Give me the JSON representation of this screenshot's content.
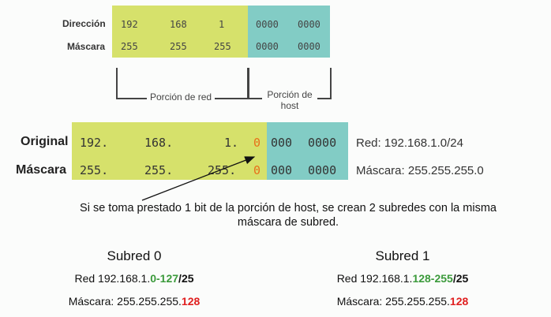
{
  "top_table": {
    "row1_label": "Dirección",
    "row2_label": "Máscara",
    "row1_net": [
      "192",
      "168",
      "1"
    ],
    "row1_host": [
      "0000",
      "0000"
    ],
    "row2_net": [
      "255",
      "255",
      "255"
    ],
    "row2_host": [
      "0000",
      "0000"
    ],
    "net_portion_label": "Porción de red",
    "host_portion_label_1": "Porción de",
    "host_portion_label_2": "host"
  },
  "mid_table": {
    "row1_label": "Original",
    "row2_label": "Máscara",
    "row1_net": [
      "192.",
      "168.",
      "1."
    ],
    "row1_bit": "0",
    "row1_host": [
      "000",
      "0000"
    ],
    "row2_net": [
      "255.",
      "255.",
      "255."
    ],
    "row2_bit": "0",
    "row2_host": [
      "000",
      "0000"
    ],
    "row1_right": "Red: 192.168.1.0/24",
    "row2_right": "Máscara: 255.255.255.0"
  },
  "note": {
    "line1": "Si se toma prestado 1 bit de la porción de host, se crean 2 subredes con la misma",
    "line2": "máscara de subred."
  },
  "subnet0": {
    "title": "Subred 0",
    "red_prefix": "Red 192.168.1.",
    "red_range": "0-127",
    "red_slash": "/",
    "red_cidr": "25",
    "mask_prefix": "Máscara: 255.255.255.",
    "mask_last": "128"
  },
  "subnet1": {
    "title": "Subred 1",
    "red_prefix": "Red 192.168.1.",
    "red_range": "128-255",
    "red_slash": "/",
    "red_cidr": "25",
    "mask_prefix": "Máscara: 255.255.255.",
    "mask_last": "128"
  },
  "colors": {
    "network_fill": "#d6e16b",
    "host_fill": "#82ccc5",
    "bit_color": "#e8701a",
    "range_color": "#3b9a3b",
    "mask_last_color": "#e02020"
  }
}
